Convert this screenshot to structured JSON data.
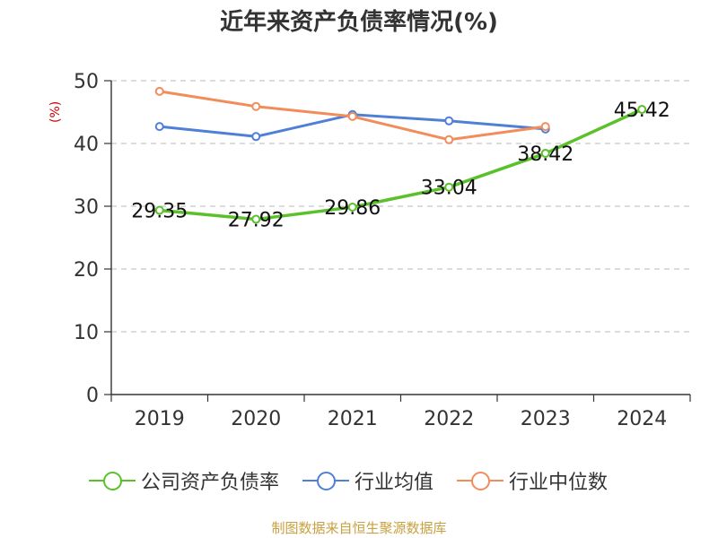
{
  "title": "近年来资产负债率情况(%)",
  "y_unit_label": "(%)",
  "source": "制图数据来自恒生聚源数据库",
  "colors": {
    "company": "#5ac12a",
    "industry_avg": "#4f7fd6",
    "industry_median": "#f28c5a",
    "grid": "#c8c8c8",
    "axis": "#333333"
  },
  "legend": [
    {
      "label": "公司资产负债率",
      "color": "#5ac12a"
    },
    {
      "label": "行业均值",
      "color": "#4f7fd6"
    },
    {
      "label": "行业中位数",
      "color": "#f28c5a"
    }
  ],
  "chart_data": {
    "type": "line",
    "title": "近年来资产负债率情况(%)",
    "ylabel": "(%)",
    "categories": [
      "2019",
      "2020",
      "2021",
      "2022",
      "2023",
      "2024"
    ],
    "ylim": [
      0,
      50
    ],
    "yticks": [
      0,
      10,
      20,
      30,
      40,
      50
    ],
    "grid": true,
    "legend_position": "bottom",
    "series": [
      {
        "name": "公司资产负债率",
        "values": [
          29.35,
          27.92,
          29.86,
          33.04,
          38.42,
          45.42
        ],
        "labels": [
          "29.35",
          "27.92",
          "29.86",
          "33.04",
          "38.42",
          "45.42"
        ]
      },
      {
        "name": "行业均值",
        "values": [
          42.7,
          41.1,
          44.6,
          43.6,
          42.3,
          null
        ]
      },
      {
        "name": "行业中位数",
        "values": [
          48.3,
          45.9,
          44.3,
          40.6,
          42.7,
          null
        ]
      }
    ]
  }
}
